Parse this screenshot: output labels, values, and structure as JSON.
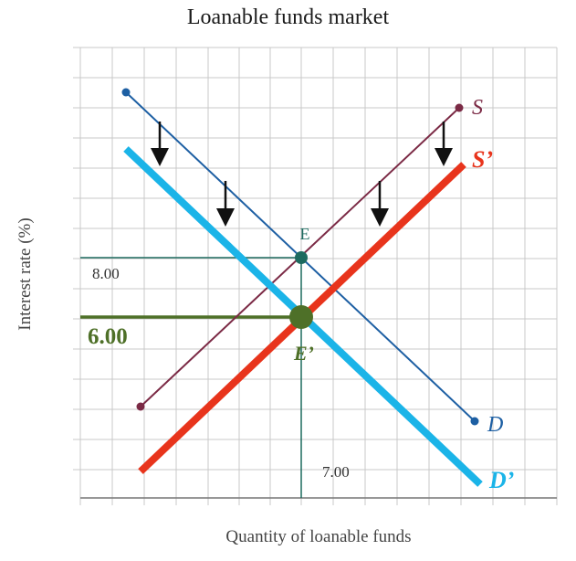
{
  "title": "Loanable funds market",
  "x_axis_label": "Quantity of loanable funds",
  "y_axis_label": "Interest rate (%)",
  "colors": {
    "grid": "#c8c8c8",
    "supply": "#7b2a45",
    "demand": "#1d5fa3",
    "supply_new": "#e8341c",
    "demand_new": "#1bb4e8",
    "initial_equilibrium": "#1d6b5f",
    "new_equilibrium": "#4e7028",
    "arrows": "#111111"
  },
  "curves": {
    "supply": "S",
    "demand": "D",
    "supply_new": "S’",
    "demand_new": "D’"
  },
  "equilibria": {
    "initial": {
      "label": "E",
      "rate_label": "8.00",
      "quantity_label": "7.00"
    },
    "new": {
      "label": "E’",
      "rate_label": "6.00"
    }
  },
  "shift_arrows": [
    {
      "id": "shift-arrow-1",
      "direction": "down"
    },
    {
      "id": "shift-arrow-2",
      "direction": "down"
    },
    {
      "id": "shift-arrow-3",
      "direction": "down"
    },
    {
      "id": "shift-arrow-4",
      "direction": "down"
    }
  ]
}
